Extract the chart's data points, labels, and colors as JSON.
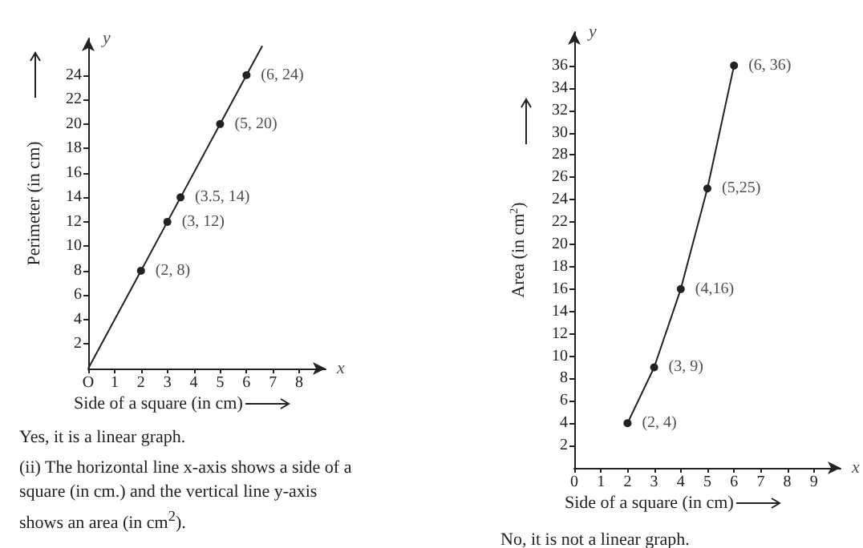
{
  "chart_data": [
    {
      "type": "line",
      "xlabel": "Side of a square (in cm)",
      "ylabel": "Perimeter (in cm)",
      "xlim": [
        0,
        9
      ],
      "ylim": [
        0,
        27
      ],
      "xticks": [
        {
          "value": 0,
          "label": "O"
        },
        1,
        2,
        3,
        4,
        5,
        6,
        7,
        8
      ],
      "yticks": [
        2,
        4,
        6,
        8,
        10,
        12,
        14,
        16,
        18,
        20,
        22,
        24
      ],
      "marker": "circle",
      "grid": false,
      "series": [
        {
          "color": "#222222",
          "x": [
            0,
            2,
            3,
            3.5,
            5,
            6,
            6.6
          ],
          "values": [
            0,
            8,
            12,
            14,
            20,
            24,
            26.4
          ]
        }
      ],
      "annotations": [
        "x",
        "y",
        {
          "text": "(2, 8)",
          "x": 2,
          "y": 8
        },
        {
          "text": "(3, 12)",
          "x": 3,
          "y": 12
        },
        {
          "text": "(3.5, 14)",
          "x": 3.5,
          "y": 14
        },
        {
          "text": "(5, 20)",
          "x": 5,
          "y": 20
        },
        {
          "text": "(6, 24)",
          "x": 6,
          "y": 24
        },
        "Yes, it is a linear graph.",
        "(ii) The horizontal line x-axis shows a side of a square (in cm.) and the vertical line y-axis shows an area (in cm$^{2}$)."
      ]
    },
    {
      "type": "line",
      "xlabel": "Side of a square (in cm)",
      "ylabel": "Area (in cm$^{2}$)",
      "xlim": [
        0,
        10
      ],
      "ylim": [
        0,
        39
      ],
      "xticks": [
        0,
        1,
        2,
        3,
        4,
        5,
        6,
        7,
        8,
        9
      ],
      "yticks": [
        2,
        4,
        6,
        8,
        10,
        12,
        14,
        16,
        18,
        20,
        22,
        24,
        26,
        28,
        30,
        32,
        34,
        36
      ],
      "marker": "circle",
      "grid": false,
      "series": [
        {
          "color": "#222222",
          "x": [
            2,
            3,
            4,
            5,
            6
          ],
          "values": [
            4,
            9,
            16,
            25,
            36
          ]
        }
      ],
      "annotations": [
        "x",
        "y",
        {
          "text": "(2, 4)",
          "x": 2,
          "y": 4
        },
        {
          "text": "(3, 9)",
          "x": 3,
          "y": 9
        },
        {
          "text": "(4,16)",
          "x": 4,
          "y": 16
        },
        {
          "text": "(5,25)",
          "x": 5,
          "y": 25
        },
        {
          "text": "(6, 36)",
          "x": 6,
          "y": 36
        },
        "No, it is not a linear graph."
      ]
    }
  ]
}
